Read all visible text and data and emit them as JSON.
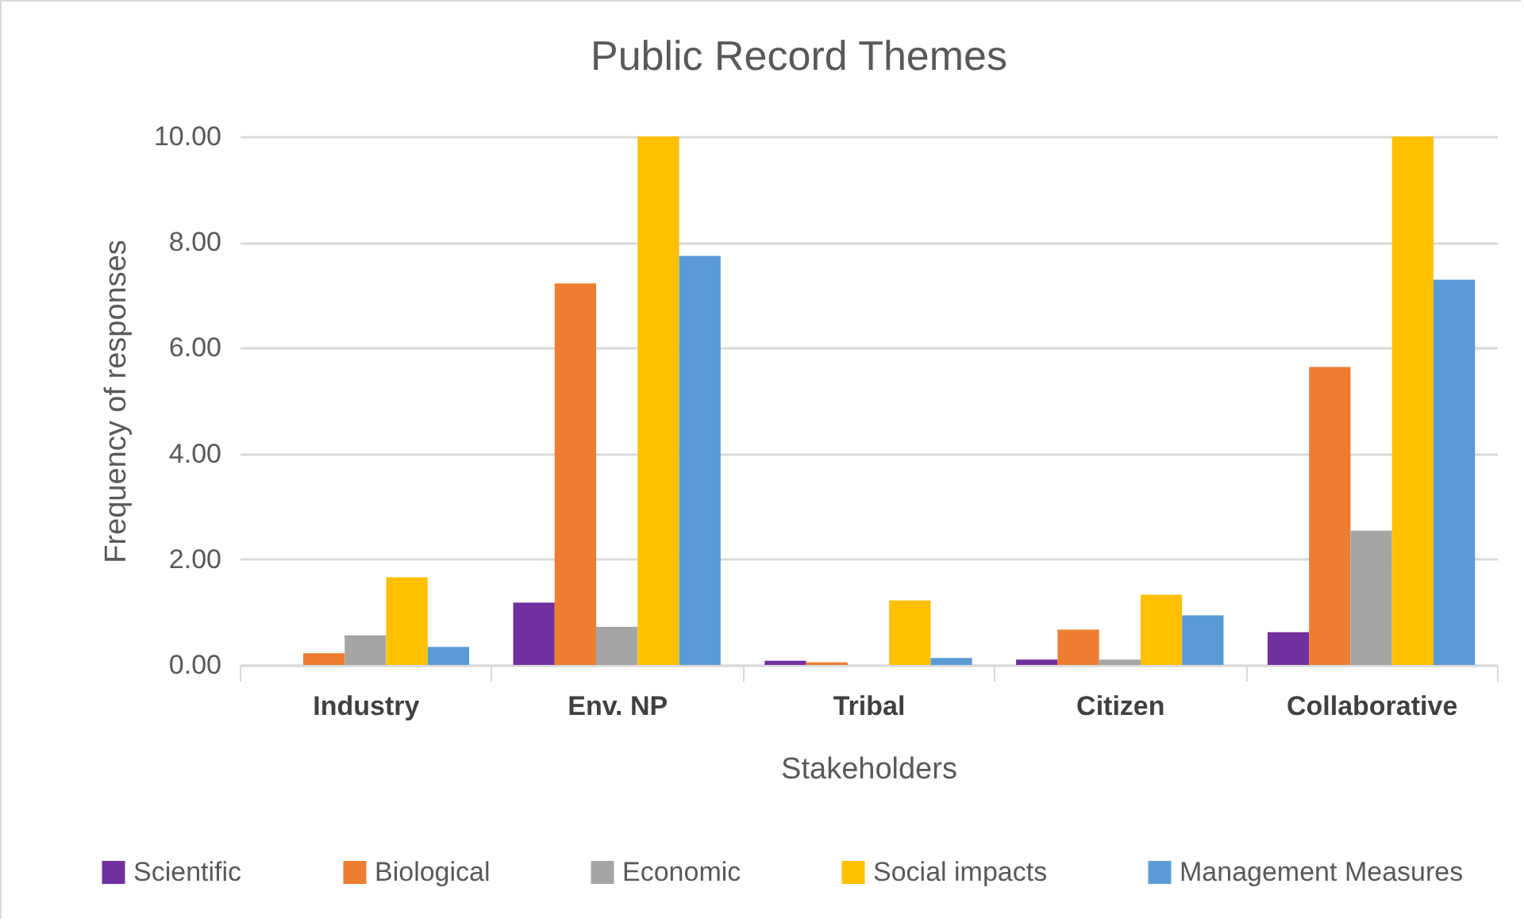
{
  "chart_data": {
    "type": "bar",
    "title": "Public Record Themes",
    "xlabel": "Stakeholders",
    "ylabel": "Frequency of responses",
    "categories": [
      "Industry",
      "Env. NP",
      "Tribal",
      "Citizen",
      "Collaborative"
    ],
    "series": [
      {
        "name": "Scientific",
        "color": "#7030a0",
        "values": [
          0,
          1.18,
          0.08,
          0.1,
          0.62
        ]
      },
      {
        "name": "Biological",
        "color": "#ed7d31",
        "values": [
          0.22,
          7.22,
          0.05,
          0.67,
          5.64
        ]
      },
      {
        "name": "Economic",
        "color": "#a5a5a5",
        "values": [
          0.56,
          0.72,
          0,
          0.1,
          2.54
        ]
      },
      {
        "name": "Social impacts",
        "color": "#ffc000",
        "values": [
          1.66,
          10,
          1.22,
          1.33,
          10
        ]
      },
      {
        "name": "Management Measures",
        "color": "#5b9bd5",
        "values": [
          0.34,
          7.74,
          0.13,
          0.94,
          7.29
        ]
      }
    ],
    "ylim": [
      0,
      10
    ],
    "yticks": [
      {
        "value": 0,
        "label": "0.00"
      },
      {
        "value": 2,
        "label": "2.00"
      },
      {
        "value": 4,
        "label": "4.00"
      },
      {
        "value": 6,
        "label": "6.00"
      },
      {
        "value": 8,
        "label": "8.00"
      },
      {
        "value": 10,
        "label": "10.00"
      }
    ],
    "grid": "y",
    "legend": "bottom"
  }
}
